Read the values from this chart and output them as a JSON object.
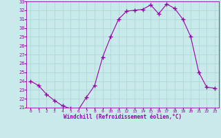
{
  "hours": [
    0,
    1,
    2,
    3,
    4,
    5,
    6,
    7,
    8,
    9,
    10,
    11,
    12,
    13,
    14,
    15,
    16,
    17,
    18,
    19,
    20,
    21,
    22,
    23
  ],
  "values": [
    24.0,
    23.5,
    22.5,
    21.8,
    21.2,
    20.9,
    20.8,
    22.2,
    23.5,
    26.7,
    29.0,
    31.0,
    31.9,
    32.0,
    32.1,
    32.6,
    31.6,
    32.7,
    32.2,
    31.0,
    29.0,
    25.0,
    23.3,
    23.2
  ],
  "xlabel": "Windchill (Refroidissement éolien,°C)",
  "ylim": [
    21,
    33
  ],
  "xlim": [
    -0.5,
    23.5
  ],
  "yticks": [
    21,
    22,
    23,
    24,
    25,
    26,
    27,
    28,
    29,
    30,
    31,
    32,
    33
  ],
  "xticks": [
    0,
    1,
    2,
    3,
    4,
    5,
    6,
    7,
    8,
    9,
    10,
    11,
    12,
    13,
    14,
    15,
    16,
    17,
    18,
    19,
    20,
    21,
    22,
    23
  ],
  "line_color": "#9900aa",
  "marker_color": "#9900aa",
  "bg_color": "#c8eaea",
  "grid_color": "#b0d8d8",
  "tick_label_color": "#9900aa",
  "axis_label_color": "#9900aa"
}
